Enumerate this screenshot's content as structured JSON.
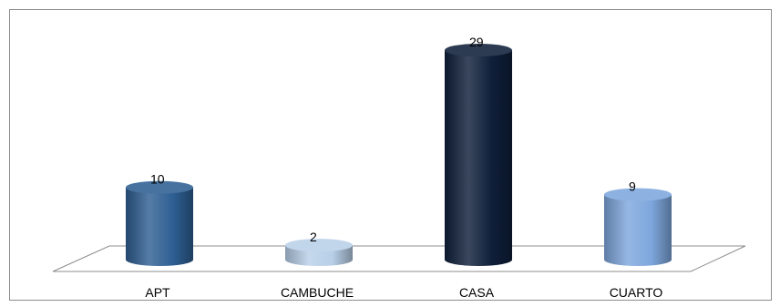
{
  "chart_data": {
    "type": "bar",
    "style": "3d-cylinder",
    "categories": [
      "APT",
      "CAMBUCHE",
      "CASA",
      "CUARTO"
    ],
    "values": [
      10,
      2,
      29,
      9
    ],
    "colors": [
      "#2e5f93",
      "#b8cfe8",
      "#0f1f3a",
      "#7ea7dd"
    ],
    "title": "",
    "xlabel": "",
    "ylabel": "",
    "ylim": [
      0,
      30
    ],
    "grid": false,
    "legend": "none"
  }
}
